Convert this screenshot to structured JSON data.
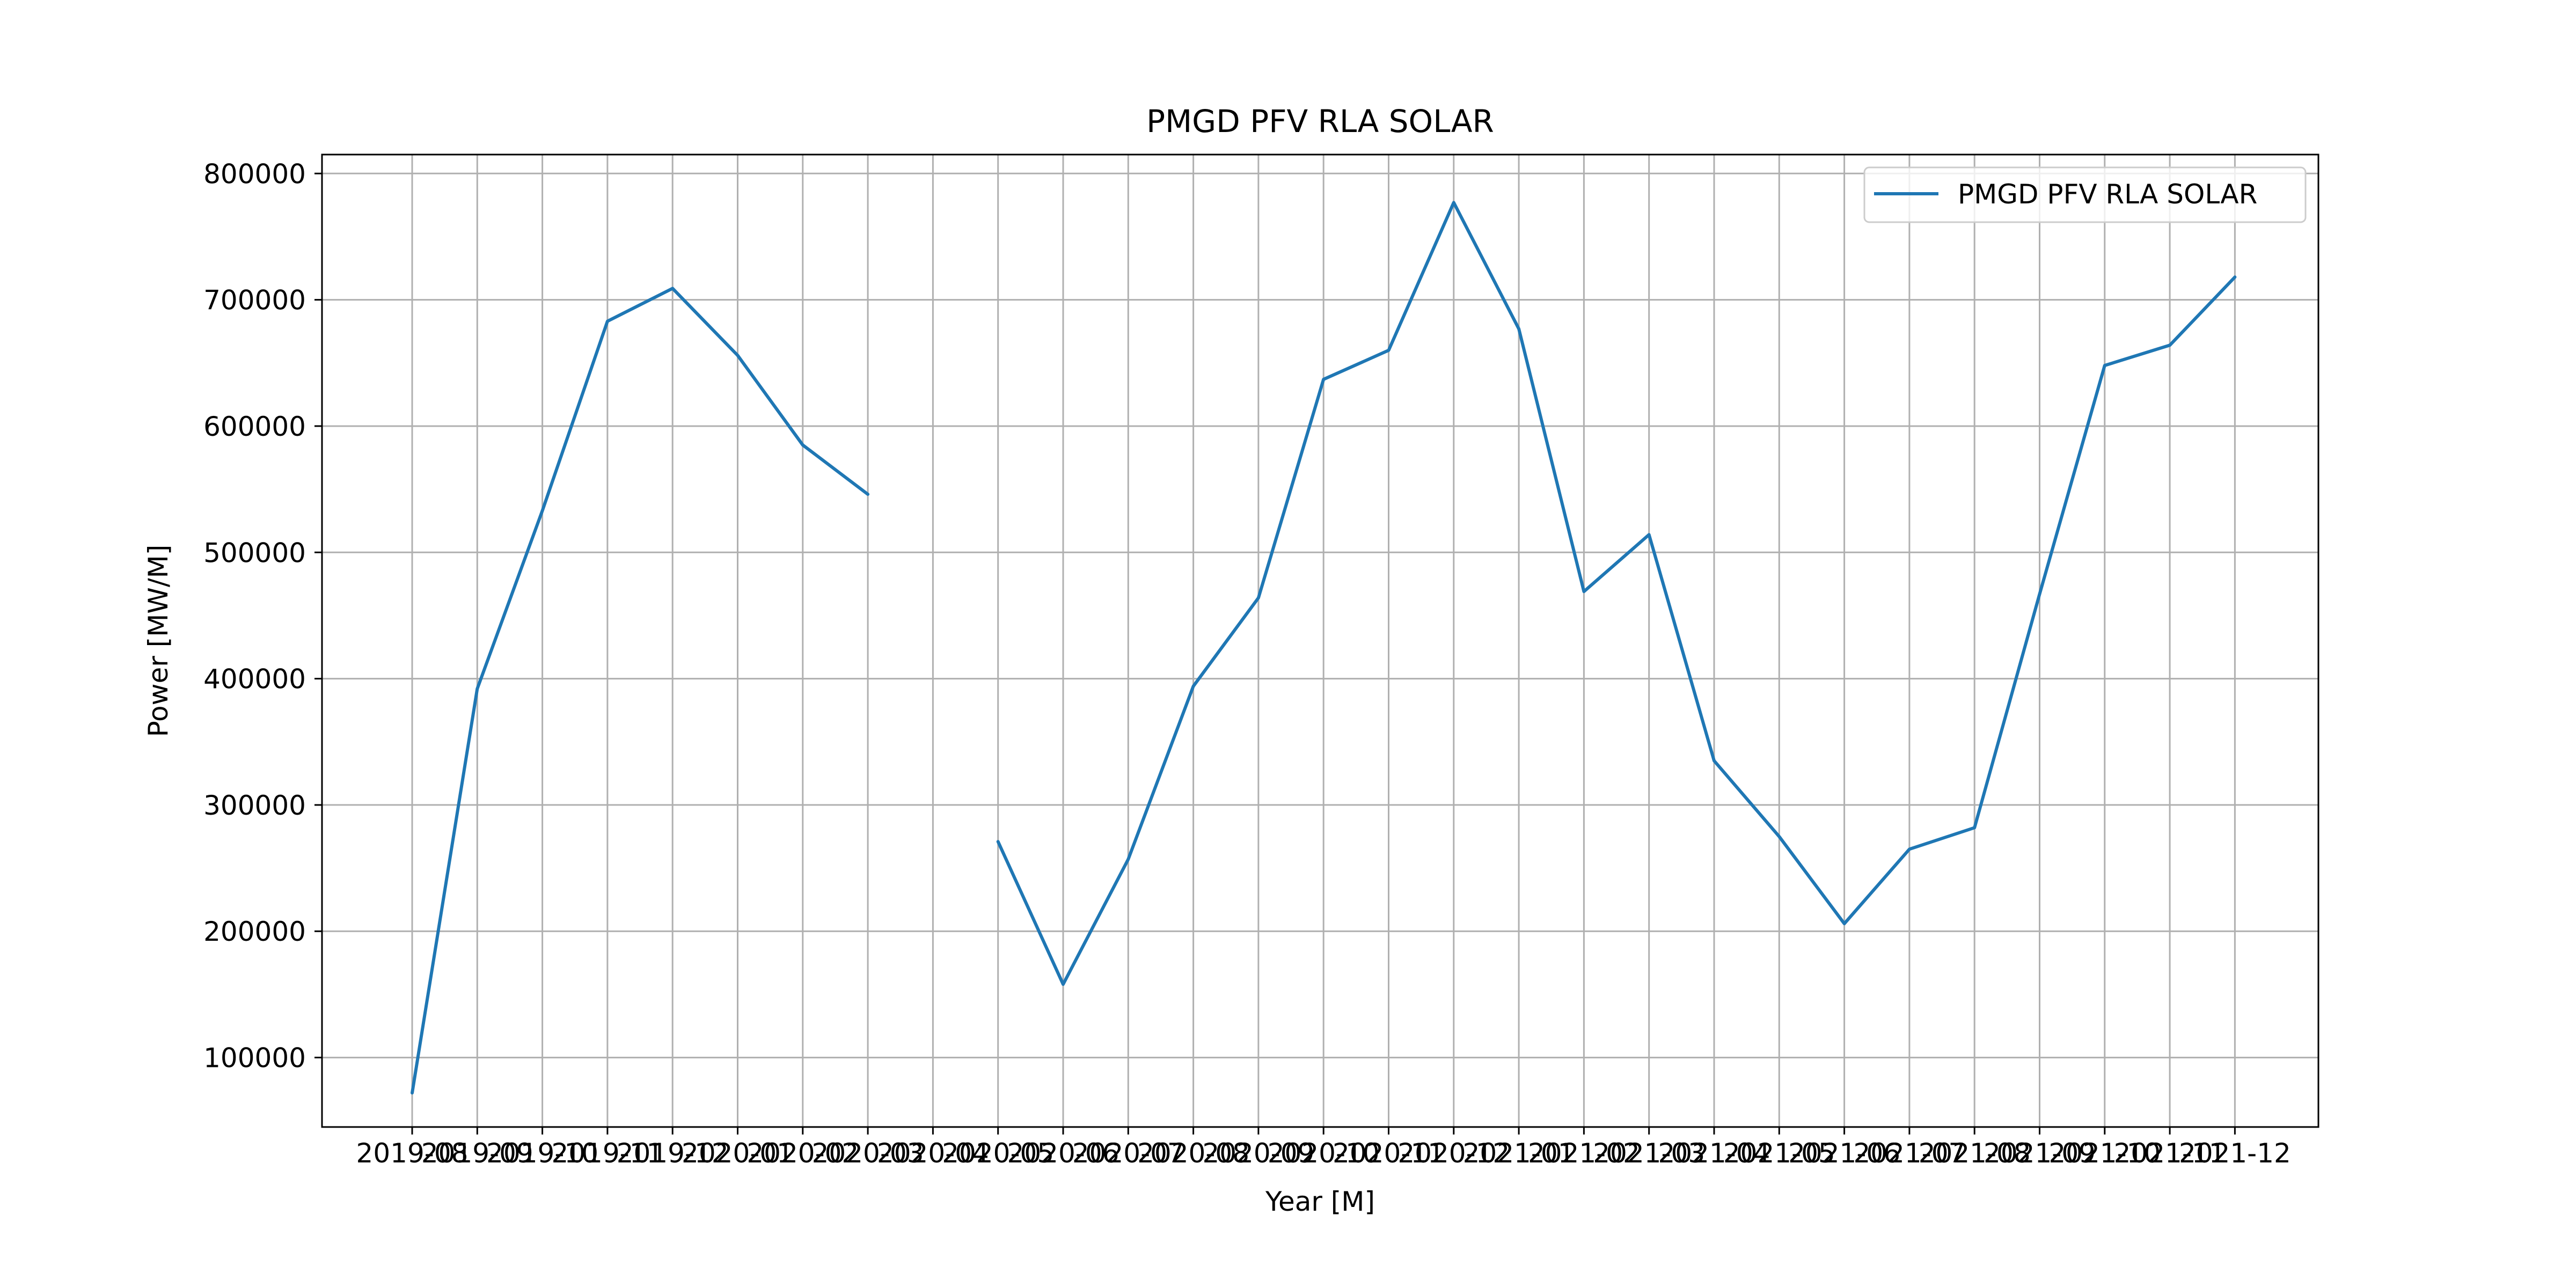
{
  "chart_data": {
    "type": "line",
    "title": "PMGD PFV RLA SOLAR",
    "xlabel": "Year [M]",
    "ylabel": "Power [MW/M]",
    "ylim": [
      45000,
      815000
    ],
    "yticks": [
      100000,
      200000,
      300000,
      400000,
      500000,
      600000,
      700000,
      800000
    ],
    "ytick_labels": [
      "100000",
      "200000",
      "300000",
      "400000",
      "500000",
      "600000",
      "700000",
      "800000"
    ],
    "grid": true,
    "legend_position": "top-right",
    "categories": [
      "2019-08",
      "2019-09",
      "2019-10",
      "2019-11",
      "2019-12",
      "2020-01",
      "2020-02",
      "2020-03",
      "2020-04",
      "2020-05",
      "2020-06",
      "2020-07",
      "2020-08",
      "2020-09",
      "2020-10",
      "2020-11",
      "2020-12",
      "2021-01",
      "2021-02",
      "2021-03",
      "2021-04",
      "2021-05",
      "2021-06",
      "2021-07",
      "2021-08",
      "2021-09",
      "2021-10",
      "2021-11",
      "2021-12"
    ],
    "series": [
      {
        "name": "PMGD PFV RLA SOLAR",
        "color": "#1f77b4",
        "values": [
          72000,
          392000,
          533000,
          683000,
          709000,
          656000,
          585000,
          546000,
          null,
          271000,
          158000,
          257000,
          394000,
          464000,
          637000,
          660000,
          777000,
          677000,
          469000,
          514000,
          335000,
          275000,
          206000,
          265000,
          282000,
          467000,
          648000,
          664000,
          718000
        ]
      }
    ]
  }
}
